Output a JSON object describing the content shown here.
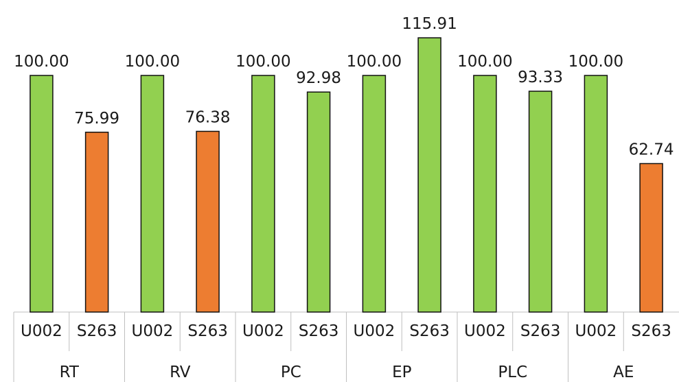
{
  "chart_data": {
    "type": "bar",
    "title": "",
    "xlabel": "",
    "ylabel": "",
    "ylim": [
      0,
      121
    ],
    "grid": false,
    "legend": "none",
    "groups": [
      {
        "label": "RT",
        "bars": [
          {
            "label": "U002",
            "value": 100.0,
            "value_text": "100.00",
            "color": "#92d050"
          },
          {
            "label": "S263",
            "value": 75.99,
            "value_text": "75.99",
            "color": "#ed7d31"
          }
        ]
      },
      {
        "label": "RV",
        "bars": [
          {
            "label": "U002",
            "value": 100.0,
            "value_text": "100.00",
            "color": "#92d050"
          },
          {
            "label": "S263",
            "value": 76.38,
            "value_text": "76.38",
            "color": "#ed7d31"
          }
        ]
      },
      {
        "label": "PC",
        "bars": [
          {
            "label": "U002",
            "value": 100.0,
            "value_text": "100.00",
            "color": "#92d050"
          },
          {
            "label": "S263",
            "value": 92.98,
            "value_text": "92.98",
            "color": "#92d050"
          }
        ]
      },
      {
        "label": "EP",
        "bars": [
          {
            "label": "U002",
            "value": 100.0,
            "value_text": "100.00",
            "color": "#92d050"
          },
          {
            "label": "S263",
            "value": 115.91,
            "value_text": "115.91",
            "color": "#92d050"
          }
        ]
      },
      {
        "label": "PLC",
        "bars": [
          {
            "label": "U002",
            "value": 100.0,
            "value_text": "100.00",
            "color": "#92d050"
          },
          {
            "label": "S263",
            "value": 93.33,
            "value_text": "93.33",
            "color": "#92d050"
          }
        ]
      },
      {
        "label": "AE",
        "bars": [
          {
            "label": "U002",
            "value": 100.0,
            "value_text": "100.00",
            "color": "#92d050"
          },
          {
            "label": "S263",
            "value": 62.74,
            "value_text": "62.74",
            "color": "#ed7d31"
          }
        ]
      }
    ]
  }
}
